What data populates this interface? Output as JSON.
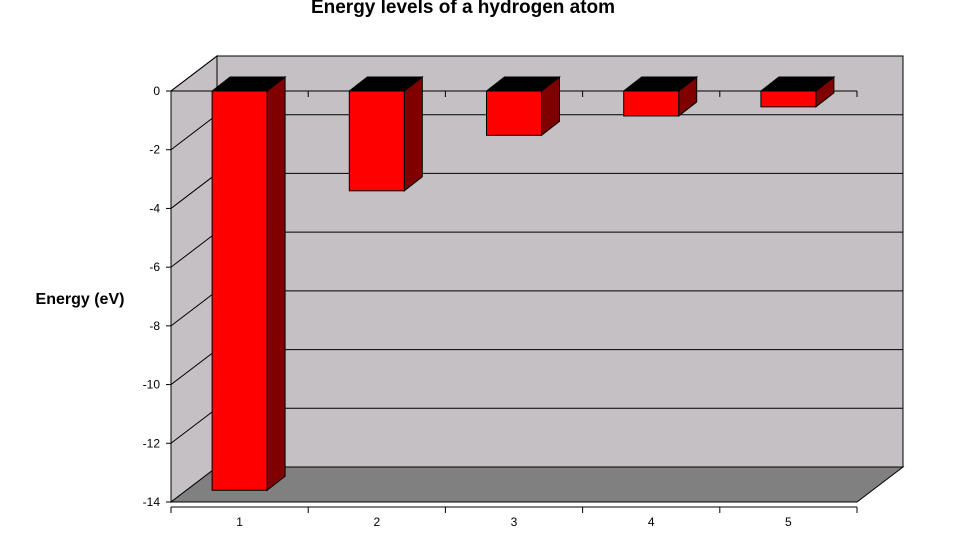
{
  "chart_data": {
    "type": "bar",
    "title": "Energy levels of a hydrogen atom",
    "ylabel": "Energy (eV)",
    "xlabel": "",
    "categories": [
      "1",
      "2",
      "3",
      "4",
      "5"
    ],
    "values": [
      -13.6,
      -3.4,
      -1.51,
      -0.85,
      -0.54
    ],
    "ylim": [
      -14,
      0
    ],
    "yticks": [
      0,
      -2,
      -4,
      -6,
      -8,
      -10,
      -12,
      -14
    ],
    "grid": true,
    "legend": "none",
    "bar_style": "3d"
  },
  "colors": {
    "bar_front": "#ff0000",
    "bar_side": "#800000",
    "bar_top": "#000000",
    "back_wall": "#c4c0c4",
    "side_wall": "#c4c0c4",
    "floor": "#808080"
  }
}
